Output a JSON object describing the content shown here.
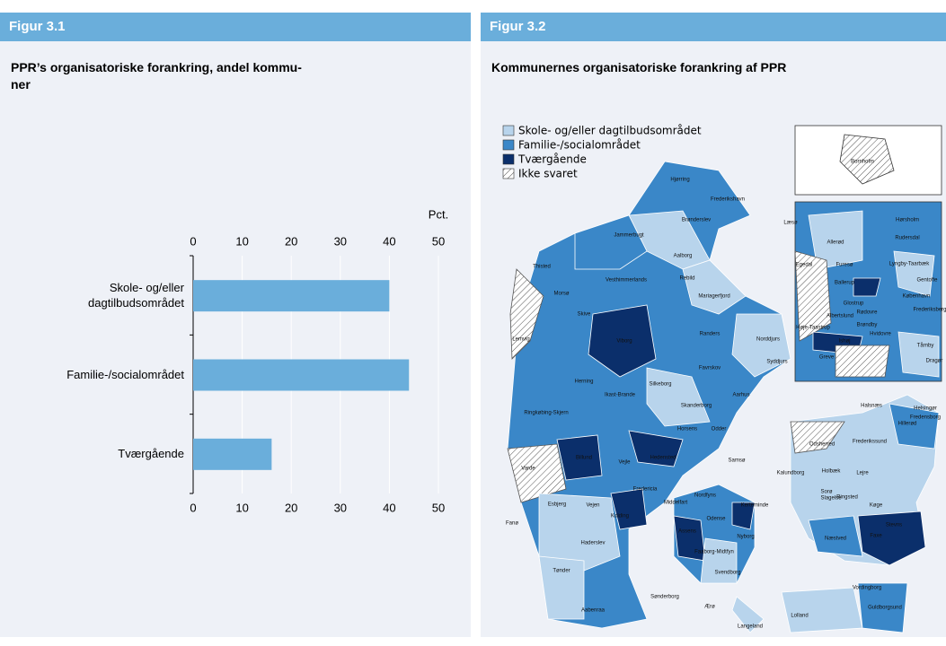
{
  "figures": [
    {
      "label": "Figur 3.1",
      "title": [
        "PPR’s organisatoriske forankring, andel kommu-",
        "ner"
      ],
      "chart_data": {
        "type": "bar",
        "orientation": "horizontal",
        "categories": [
          "Skole- og/eller dagtilbudsområdet",
          "Familie-/socialområdet",
          "Tværgående"
        ],
        "values": [
          40,
          44,
          16
        ],
        "color": "#6aaedb",
        "xlim": [
          0,
          50
        ],
        "xticks": [
          0,
          10,
          20,
          30,
          40,
          50
        ],
        "xlabel": "Pct.",
        "grid": true
      }
    },
    {
      "label": "Figur 3.2",
      "title": "Kommunernes organisatoriske forankring af PPR",
      "legend": [
        {
          "name": "Skole- og/eller dagtilbudsområdet",
          "color": "#b8d4ec"
        },
        {
          "name": "Familie-/socialområdet",
          "color": "#3a87c8"
        },
        {
          "name": "Tværgående",
          "color": "#0b2f6b"
        },
        {
          "name": "Ikke svaret",
          "color": "hatch"
        }
      ],
      "labels": [
        "Hjørring",
        "Frederikshavn",
        "Brønderslev",
        "Læsø",
        "Jammerbugt",
        "Aalborg",
        "Thisted",
        "Vesthimmerlands",
        "Rebild",
        "Morsø",
        "Mariagerfjord",
        "Skive",
        "Randers",
        "Norddjurs",
        "Viborg",
        "Lemvig",
        "Syddjurs",
        "Favrskov",
        "Silkeborg",
        "Herning",
        "Ikast-Brande",
        "Aarhus",
        "Skanderborg",
        "Ringkøbing-Skjern",
        "Horsens",
        "Odder",
        "Billund",
        "Vejle",
        "Hedensted",
        "Samsø",
        "Varde",
        "Fredericia",
        "Esbjerg",
        "Vejen",
        "Kolding",
        "Middelfart",
        "Nordfyns",
        "Kerteminde",
        "Odense",
        "Fanø",
        "Assens",
        "Nyborg",
        "Haderslev",
        "Faaborg-Midtfyn",
        "Svendborg",
        "Tønder",
        "Aabenraa",
        "Sønderborg",
        "Ærø",
        "Langeland",
        "Lolland",
        "Guldborgsund",
        "Næstved",
        "Faxe",
        "Slagelse",
        "Køge",
        "Ringsted",
        "Holbæk",
        "Odsherred",
        "Kalundborg",
        "Sorø",
        "Lejre",
        "Frederikssund",
        "Hillerød",
        "Helsingør",
        "Fredensborg",
        "Halsnæs",
        "Stevns",
        "Vordingborg",
        "Bornholm",
        "Hørsholm",
        "Allerød",
        "Rudersdal",
        "Furesø",
        "Lyngby-Taarbæk",
        "Egedal",
        "Gentofte",
        "Ballerup",
        "København",
        "Glostrup",
        "Frederiksberg",
        "Albertslund",
        "Rødovre",
        "Brøndby",
        "Hvidovre",
        "Høje-Taastrup",
        "Ishøj",
        "Greve",
        "Tårnby",
        "Dragør"
      ]
    }
  ]
}
